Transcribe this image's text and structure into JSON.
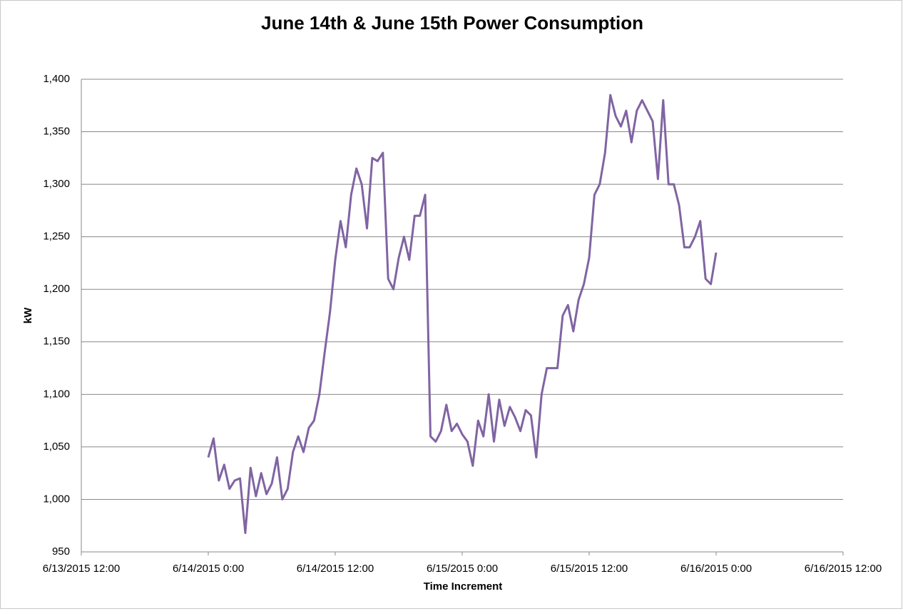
{
  "chart_data": {
    "type": "line",
    "title": "June 14th & June 15th Power Consumption",
    "x_label": "Time Increment",
    "y_label": "kW",
    "x": [
      "2015-06-14T00:00",
      "2015-06-14T00:30",
      "2015-06-14T01:00",
      "2015-06-14T01:30",
      "2015-06-14T02:00",
      "2015-06-14T02:30",
      "2015-06-14T03:00",
      "2015-06-14T03:30",
      "2015-06-14T04:00",
      "2015-06-14T04:30",
      "2015-06-14T05:00",
      "2015-06-14T05:30",
      "2015-06-14T06:00",
      "2015-06-14T06:30",
      "2015-06-14T07:00",
      "2015-06-14T07:30",
      "2015-06-14T08:00",
      "2015-06-14T08:30",
      "2015-06-14T09:00",
      "2015-06-14T09:30",
      "2015-06-14T10:00",
      "2015-06-14T10:30",
      "2015-06-14T11:00",
      "2015-06-14T11:30",
      "2015-06-14T12:00",
      "2015-06-14T12:30",
      "2015-06-14T13:00",
      "2015-06-14T13:30",
      "2015-06-14T14:00",
      "2015-06-14T14:30",
      "2015-06-14T15:00",
      "2015-06-14T15:30",
      "2015-06-14T16:00",
      "2015-06-14T16:30",
      "2015-06-14T17:00",
      "2015-06-14T17:30",
      "2015-06-14T18:00",
      "2015-06-14T18:30",
      "2015-06-14T19:00",
      "2015-06-14T19:30",
      "2015-06-14T20:00",
      "2015-06-14T20:30",
      "2015-06-14T21:00",
      "2015-06-14T21:30",
      "2015-06-14T22:00",
      "2015-06-14T22:30",
      "2015-06-14T23:00",
      "2015-06-14T23:30",
      "2015-06-15T00:00",
      "2015-06-15T00:30",
      "2015-06-15T01:00",
      "2015-06-15T01:30",
      "2015-06-15T02:00",
      "2015-06-15T02:30",
      "2015-06-15T03:00",
      "2015-06-15T03:30",
      "2015-06-15T04:00",
      "2015-06-15T04:30",
      "2015-06-15T05:00",
      "2015-06-15T05:30",
      "2015-06-15T06:00",
      "2015-06-15T06:30",
      "2015-06-15T07:00",
      "2015-06-15T07:30",
      "2015-06-15T08:00",
      "2015-06-15T08:30",
      "2015-06-15T09:00",
      "2015-06-15T09:30",
      "2015-06-15T10:00",
      "2015-06-15T10:30",
      "2015-06-15T11:00",
      "2015-06-15T11:30",
      "2015-06-15T12:00",
      "2015-06-15T12:30",
      "2015-06-15T13:00",
      "2015-06-15T13:30",
      "2015-06-15T14:00",
      "2015-06-15T14:30",
      "2015-06-15T15:00",
      "2015-06-15T15:30",
      "2015-06-15T16:00",
      "2015-06-15T16:30",
      "2015-06-15T17:00",
      "2015-06-15T17:30",
      "2015-06-15T18:00",
      "2015-06-15T18:30",
      "2015-06-15T19:00",
      "2015-06-15T19:30",
      "2015-06-15T20:00",
      "2015-06-15T20:30",
      "2015-06-15T21:00",
      "2015-06-15T21:30",
      "2015-06-15T22:00",
      "2015-06-15T22:30",
      "2015-06-15T23:00",
      "2015-06-15T23:30",
      "2015-06-16T00:00"
    ],
    "series": [
      {
        "name": "kW",
        "color": "#8064a2",
        "values": [
          1040,
          1058,
          1018,
          1033,
          1010,
          1018,
          1020,
          968,
          1030,
          1003,
          1025,
          1005,
          1015,
          1040,
          1000,
          1010,
          1045,
          1060,
          1045,
          1068,
          1075,
          1100,
          1140,
          1178,
          1228,
          1265,
          1240,
          1290,
          1315,
          1300,
          1258,
          1325,
          1322,
          1330,
          1210,
          1200,
          1230,
          1250,
          1228,
          1270,
          1270,
          1290,
          1060,
          1055,
          1065,
          1090,
          1065,
          1072,
          1062,
          1055,
          1032,
          1075,
          1060,
          1100,
          1055,
          1095,
          1070,
          1088,
          1078,
          1065,
          1085,
          1080,
          1040,
          1100,
          1125,
          1125,
          1125,
          1175,
          1185,
          1160,
          1190,
          1205,
          1230,
          1290,
          1300,
          1330,
          1385,
          1365,
          1355,
          1370,
          1340,
          1370,
          1380,
          1370,
          1360,
          1305,
          1380,
          1300,
          1300,
          1280,
          1240,
          1240,
          1250,
          1265,
          1210,
          1205,
          1235
        ]
      }
    ],
    "xlim": [
      "2015-06-13T12:00",
      "2015-06-16T12:00"
    ],
    "xticks": [
      {
        "value": "2015-06-13T12:00",
        "label": "6/13/2015 12:00"
      },
      {
        "value": "2015-06-14T00:00",
        "label": "6/14/2015 0:00"
      },
      {
        "value": "2015-06-14T12:00",
        "label": "6/14/2015 12:00"
      },
      {
        "value": "2015-06-15T00:00",
        "label": "6/15/2015 0:00"
      },
      {
        "value": "2015-06-15T12:00",
        "label": "6/15/2015 12:00"
      },
      {
        "value": "2015-06-16T00:00",
        "label": "6/16/2015 0:00"
      },
      {
        "value": "2015-06-16T12:00",
        "label": "6/16/2015 12:00"
      }
    ],
    "ylim": [
      950,
      1400
    ],
    "yticks": [
      950,
      {
        "value": 1000,
        "label": "1,000"
      },
      {
        "value": 1050,
        "label": "1,050"
      },
      {
        "value": 1100,
        "label": "1,100"
      },
      {
        "value": 1150,
        "label": "1,150"
      },
      {
        "value": 1200,
        "label": "1,200"
      },
      {
        "value": 1250,
        "label": "1,250"
      },
      {
        "value": 1300,
        "label": "1,300"
      },
      {
        "value": 1350,
        "label": "1,350"
      },
      {
        "value": 1400,
        "label": "1,400"
      }
    ],
    "grid": true
  }
}
